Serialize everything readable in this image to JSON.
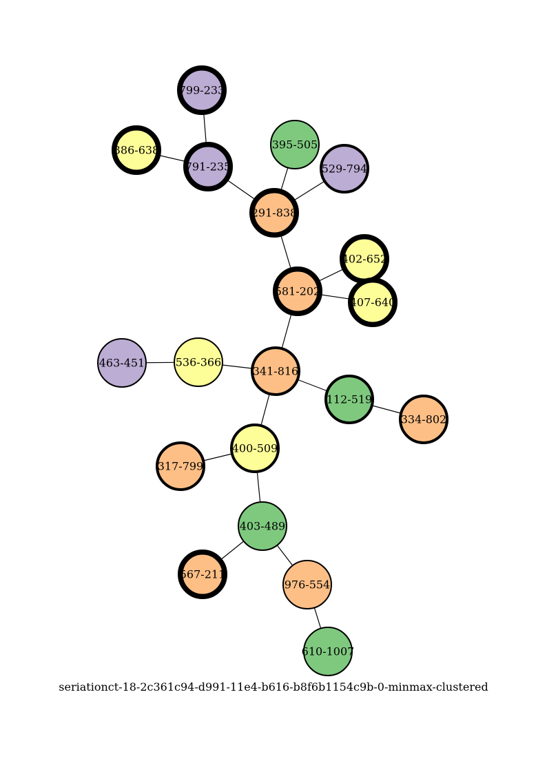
{
  "caption": "seriationct-18-2c361c94-d991-11e4-b616-b8f6b1154c9b-0-minmax-clustered",
  "colors": {
    "purple": "#bcadd4",
    "yellow": "#fefe99",
    "green": "#7fc97f",
    "orange": "#fdbf86",
    "stroke": "#000000"
  },
  "nodes": [
    {
      "id": "799-233",
      "color": "purple",
      "weight": "thick"
    },
    {
      "id": "386-638",
      "color": "yellow",
      "weight": "thick"
    },
    {
      "id": "791-235",
      "color": "purple",
      "weight": "thick"
    },
    {
      "id": "395-505",
      "color": "green",
      "weight": "thin"
    },
    {
      "id": "529-794",
      "color": "purple",
      "weight": "medium"
    },
    {
      "id": "291-838",
      "color": "orange",
      "weight": "thick"
    },
    {
      "id": "402-652",
      "color": "yellow",
      "weight": "thick"
    },
    {
      "id": "581-202",
      "color": "orange",
      "weight": "thick"
    },
    {
      "id": "407-640",
      "color": "yellow",
      "weight": "thick"
    },
    {
      "id": "463-451",
      "color": "purple",
      "weight": "thin"
    },
    {
      "id": "536-366",
      "color": "yellow",
      "weight": "thin"
    },
    {
      "id": "341-816",
      "color": "orange",
      "weight": "medium"
    },
    {
      "id": "112-519",
      "color": "green",
      "weight": "medium"
    },
    {
      "id": "334-802",
      "color": "orange",
      "weight": "medium"
    },
    {
      "id": "400-509",
      "color": "yellow",
      "weight": "medium"
    },
    {
      "id": "317-799",
      "color": "orange",
      "weight": "medium"
    },
    {
      "id": "403-489",
      "color": "green",
      "weight": "thin"
    },
    {
      "id": "567-211",
      "color": "orange",
      "weight": "thick"
    },
    {
      "id": "976-554",
      "color": "orange",
      "weight": "thin"
    },
    {
      "id": "610-1007",
      "color": "green",
      "weight": "thin"
    }
  ],
  "edges": [
    [
      "799-233",
      "791-235"
    ],
    [
      "386-638",
      "791-235"
    ],
    [
      "791-235",
      "291-838"
    ],
    [
      "395-505",
      "291-838"
    ],
    [
      "529-794",
      "291-838"
    ],
    [
      "291-838",
      "581-202"
    ],
    [
      "581-202",
      "402-652"
    ],
    [
      "581-202",
      "407-640"
    ],
    [
      "581-202",
      "341-816"
    ],
    [
      "463-451",
      "536-366"
    ],
    [
      "536-366",
      "341-816"
    ],
    [
      "341-816",
      "112-519"
    ],
    [
      "112-519",
      "334-802"
    ],
    [
      "341-816",
      "400-509"
    ],
    [
      "317-799",
      "400-509"
    ],
    [
      "400-509",
      "403-489"
    ],
    [
      "403-489",
      "567-211"
    ],
    [
      "403-489",
      "976-554"
    ],
    [
      "976-554",
      "610-1007"
    ]
  ]
}
